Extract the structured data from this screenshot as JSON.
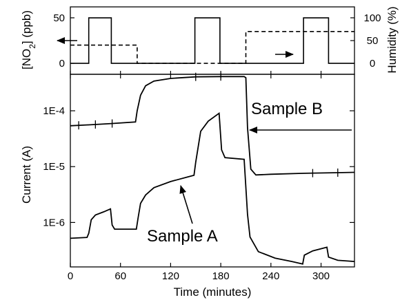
{
  "chart_data": [
    {
      "type": "line",
      "panel": "top",
      "xlabel": "",
      "xlim": [
        0,
        340
      ],
      "left_axis": {
        "label_parts": [
          "[NO",
          "2",
          "] (ppb)"
        ],
        "ylim": [
          -12,
          62
        ],
        "ticks": [
          0,
          50
        ]
      },
      "right_axis": {
        "label": "Humidity (%)",
        "ylim": [
          -24,
          124
        ],
        "ticks": [
          0,
          50,
          100
        ]
      },
      "grid": false,
      "series": [
        {
          "axis": "left",
          "style": "solid",
          "x": [
            0,
            22,
            22,
            49,
            49,
            149,
            149,
            179,
            179,
            279,
            279,
            309,
            309,
            340
          ],
          "y": [
            0,
            0,
            50,
            50,
            0,
            0,
            50,
            50,
            0,
            0,
            50,
            50,
            0,
            0
          ]
        },
        {
          "axis": "right",
          "style": "dashed",
          "x": [
            0,
            80,
            80,
            210,
            210,
            340
          ],
          "y": [
            40,
            40,
            0,
            0,
            70,
            70
          ]
        }
      ],
      "annotations": [
        {
          "type": "arrow",
          "direction": "left",
          "at": [
            40,
            0.78
          ]
        },
        {
          "type": "arrow",
          "direction": "right",
          "at": [
            222,
            0.36
          ]
        }
      ]
    },
    {
      "type": "line",
      "panel": "bottom",
      "xlabel": "Time (minutes)",
      "ylabel": "Current (A)",
      "xlim": [
        0,
        340
      ],
      "x_ticks": [
        0,
        60,
        120,
        180,
        240,
        300
      ],
      "yscale": "log",
      "ylim": [
        1.6e-07,
        0.00045
      ],
      "y_ticks": [
        1e-06,
        1e-05,
        0.0001
      ],
      "y_tick_labels": [
        "1E-6",
        "1E-5",
        "1E-4"
      ],
      "grid": false,
      "series": [
        {
          "name": "Sample B",
          "markers": [
            10,
            30,
            50,
            150,
            180,
            290,
            320
          ],
          "points": [
            [
              0,
              5.4e-05
            ],
            [
              22,
              5.6e-05
            ],
            [
              49,
              5.9e-05
            ],
            [
              78,
              6.3e-05
            ],
            [
              80,
              0.0001
            ],
            [
              84,
              0.00019
            ],
            [
              90,
              0.00028
            ],
            [
              100,
              0.00034
            ],
            [
              120,
              0.00038
            ],
            [
              150,
              0.000405
            ],
            [
              180,
              0.00041
            ],
            [
              208,
              0.00041
            ],
            [
              210,
              0.00039
            ],
            [
              212,
              5e-05
            ],
            [
              216,
              9e-06
            ],
            [
              222,
              7.1e-06
            ],
            [
              240,
              7.3e-06
            ],
            [
              280,
              7.6e-06
            ],
            [
              320,
              7.8e-06
            ],
            [
              340,
              7.9e-06
            ]
          ]
        },
        {
          "name": "Sample A",
          "points": [
            [
              0,
              5.2e-07
            ],
            [
              20,
              5.4e-07
            ],
            [
              22,
              6.4e-07
            ],
            [
              25,
              1.12e-06
            ],
            [
              30,
              1.36e-06
            ],
            [
              40,
              1.55e-06
            ],
            [
              48,
              1.75e-06
            ],
            [
              50,
              9e-07
            ],
            [
              53,
              7.6e-07
            ],
            [
              79,
              7.6e-07
            ],
            [
              81,
              1.2e-06
            ],
            [
              84,
              2.2e-06
            ],
            [
              90,
              3.1e-06
            ],
            [
              100,
              4.2e-06
            ],
            [
              120,
              5.4e-06
            ],
            [
              140,
              6.5e-06
            ],
            [
              148,
              7e-06
            ],
            [
              150,
              1.2e-05
            ],
            [
              156,
              4.3e-05
            ],
            [
              165,
              6.5e-05
            ],
            [
              178,
              9e-05
            ],
            [
              181,
              2e-05
            ],
            [
              185,
              1.45e-05
            ],
            [
              208,
              1.35e-05
            ],
            [
              212,
              1.4e-06
            ],
            [
              215,
              5.5e-07
            ],
            [
              225,
              3e-07
            ],
            [
              245,
              2.3e-07
            ],
            [
              265,
              2e-07
            ],
            [
              278,
              1.8e-07
            ],
            [
              280,
              2.6e-07
            ],
            [
              290,
              3.1e-07
            ],
            [
              307,
              3.6e-07
            ],
            [
              309,
              2.4e-07
            ],
            [
              320,
              2.1e-07
            ],
            [
              340,
              2e-07
            ]
          ]
        }
      ],
      "annotations": [
        {
          "type": "text",
          "text": "Sample B",
          "pointer": "arrow pointing left to Sample B drop"
        },
        {
          "type": "text",
          "text": "Sample A",
          "pointer": "arrow pointing up-left to Sample A curve"
        }
      ]
    }
  ]
}
